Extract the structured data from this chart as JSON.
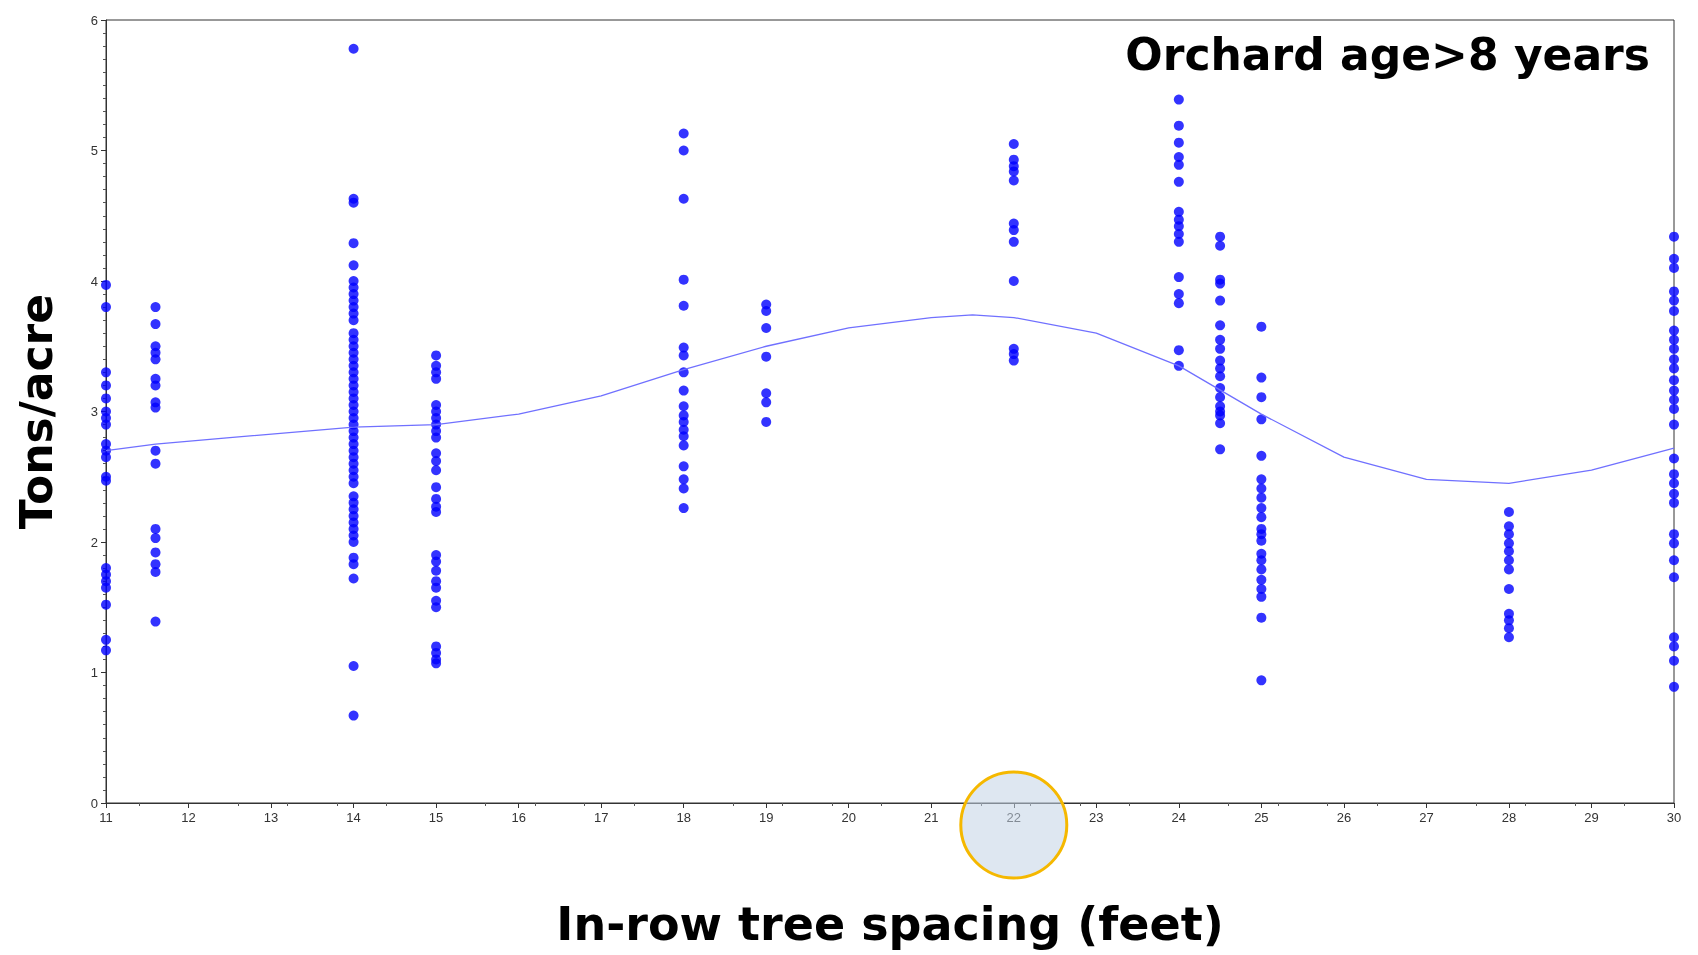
{
  "chart_data": {
    "type": "scatter",
    "xlabel": "In-row tree spacing (feet)",
    "ylabel": "Tons/acre",
    "annotations": [
      "Orchard age>8 years"
    ],
    "xlim": [
      11,
      30
    ],
    "xticks": [
      11,
      12,
      13,
      14,
      15,
      16,
      17,
      18,
      19,
      20,
      21,
      22,
      23,
      24,
      25,
      26,
      27,
      28,
      29,
      30
    ],
    "ylim": [
      0,
      6
    ],
    "yticks": [
      0,
      1,
      2,
      3,
      4,
      5,
      6
    ],
    "grid": false,
    "series": [
      {
        "color": "#0000ff",
        "marker": "circle",
        "x": [
          11,
          11,
          11,
          11,
          11,
          11,
          11,
          11,
          11,
          11,
          11,
          11,
          11,
          11,
          11,
          11,
          11,
          11,
          11,
          11,
          11.6,
          11.6,
          11.6,
          11.6,
          11.6,
          11.6,
          11.6,
          11.6,
          11.6,
          11.6,
          11.6,
          11.6,
          11.6,
          11.6,
          11.6,
          11.6,
          11.6,
          14,
          14,
          14,
          14,
          14,
          14,
          14,
          14,
          14,
          14,
          14,
          14,
          14,
          14,
          14,
          14,
          14,
          14,
          14,
          14,
          14,
          14,
          14,
          14,
          14,
          14,
          14,
          14,
          14,
          14,
          14,
          14,
          14,
          14,
          14,
          14,
          14,
          14,
          14,
          14,
          14,
          14,
          14,
          14,
          14,
          14,
          14,
          14,
          14,
          15,
          15,
          15,
          15,
          15,
          15,
          15,
          15,
          15,
          15,
          15,
          15,
          15,
          15,
          15,
          15,
          15,
          15,
          15,
          15,
          15,
          15,
          15,
          15,
          15,
          15,
          15,
          15,
          18,
          18,
          18,
          18,
          18,
          18,
          18,
          18,
          18,
          18,
          18,
          18,
          18,
          18,
          18,
          18,
          18,
          18,
          18,
          19,
          19,
          19,
          19,
          19,
          19,
          19,
          22,
          22,
          22,
          22,
          22,
          22,
          22,
          22,
          22,
          22,
          22,
          22,
          24,
          24,
          24,
          24,
          24,
          24,
          24,
          24,
          24,
          24,
          24,
          24,
          24,
          24,
          24,
          24,
          24.5,
          24.5,
          24.5,
          24.5,
          24.5,
          24.5,
          24.5,
          24.5,
          24.5,
          24.5,
          24.5,
          24.5,
          24.5,
          24.5,
          24.5,
          24.5,
          24.5,
          24.5,
          25,
          25,
          25,
          25,
          25,
          25,
          25,
          25,
          25,
          25,
          25,
          25,
          25,
          25,
          25,
          25,
          25,
          25,
          25,
          25,
          25,
          28,
          28,
          28,
          28,
          28,
          28,
          28,
          28,
          28,
          28,
          28,
          28,
          30,
          30,
          30,
          30,
          30,
          30,
          30,
          30,
          30,
          30,
          30,
          30,
          30,
          30,
          30,
          30,
          30,
          30,
          30,
          30,
          30,
          30,
          30,
          30,
          30,
          30,
          30,
          30,
          30
        ],
        "values": [
          3.97,
          3.8,
          3.3,
          3.2,
          3.1,
          3.0,
          2.95,
          2.9,
          2.75,
          2.7,
          2.65,
          2.5,
          2.47,
          1.8,
          1.75,
          1.7,
          1.65,
          1.52,
          1.25,
          1.17,
          3.8,
          3.67,
          3.5,
          3.45,
          3.4,
          3.25,
          3.2,
          3.07,
          3.03,
          2.7,
          2.6,
          2.1,
          2.03,
          1.92,
          1.83,
          1.77,
          1.39,
          5.78,
          4.63,
          4.6,
          4.29,
          4.12,
          4.0,
          3.95,
          3.9,
          3.85,
          3.8,
          3.75,
          3.7,
          3.6,
          3.55,
          3.5,
          3.45,
          3.4,
          3.35,
          3.3,
          3.25,
          3.2,
          3.15,
          3.1,
          3.05,
          3.0,
          2.95,
          2.9,
          2.85,
          2.8,
          2.75,
          2.7,
          2.65,
          2.6,
          2.55,
          2.5,
          2.45,
          2.35,
          2.3,
          2.25,
          2.2,
          2.15,
          2.1,
          2.05,
          2.0,
          1.88,
          1.83,
          1.72,
          1.05,
          0.67,
          3.43,
          3.35,
          3.3,
          3.25,
          3.05,
          3.0,
          2.95,
          2.9,
          2.85,
          2.8,
          2.68,
          2.62,
          2.55,
          2.42,
          2.33,
          2.27,
          2.23,
          1.9,
          1.85,
          1.78,
          1.7,
          1.65,
          1.55,
          1.5,
          1.2,
          1.15,
          1.1,
          1.07,
          5.13,
          5.0,
          4.63,
          4.01,
          3.81,
          3.49,
          3.43,
          3.3,
          3.16,
          3.04,
          2.97,
          2.92,
          2.86,
          2.81,
          2.74,
          2.58,
          2.48,
          2.41,
          2.26,
          3.82,
          3.77,
          3.64,
          3.42,
          3.14,
          3.07,
          2.92,
          5.05,
          4.93,
          4.88,
          4.84,
          4.77,
          4.44,
          4.39,
          4.3,
          4.0,
          3.48,
          3.39,
          3.44,
          5.39,
          5.19,
          5.06,
          4.95,
          4.89,
          4.76,
          4.53,
          4.47,
          4.42,
          4.36,
          4.3,
          4.03,
          3.9,
          3.83,
          3.47,
          3.35,
          4.34,
          4.27,
          4.01,
          3.98,
          3.85,
          3.66,
          3.55,
          3.48,
          3.39,
          3.33,
          3.27,
          3.18,
          3.11,
          3.04,
          2.97,
          2.91,
          2.71,
          3.0,
          3.65,
          3.26,
          3.11,
          2.94,
          2.66,
          2.48,
          2.41,
          2.34,
          2.26,
          2.19,
          2.06,
          2.01,
          1.91,
          1.86,
          1.79,
          1.71,
          1.64,
          1.58,
          1.42,
          0.94,
          2.1,
          2.23,
          2.12,
          2.06,
          1.99,
          1.93,
          1.86,
          1.79,
          1.64,
          1.45,
          1.4,
          1.34,
          1.27,
          4.34,
          4.17,
          4.1,
          3.92,
          3.85,
          3.77,
          3.62,
          3.55,
          3.48,
          3.4,
          3.33,
          3.24,
          3.16,
          3.09,
          3.02,
          2.9,
          2.64,
          2.52,
          2.45,
          2.37,
          2.3,
          2.06,
          1.99,
          1.86,
          1.73,
          1.27,
          1.2,
          1.09,
          0.89
        ]
      },
      {
        "type": "line",
        "color": "#7070ff",
        "marker": "none",
        "x": [
          11,
          11.6,
          12.5,
          14,
          15,
          16,
          17,
          18,
          19,
          20,
          21,
          21.5,
          22,
          23,
          24,
          25,
          26,
          27,
          28,
          29,
          30
        ],
        "values": [
          2.7,
          2.75,
          2.8,
          2.88,
          2.9,
          2.98,
          3.12,
          3.32,
          3.5,
          3.64,
          3.72,
          3.74,
          3.72,
          3.6,
          3.35,
          2.98,
          2.65,
          2.48,
          2.45,
          2.55,
          2.72
        ]
      }
    ]
  }
}
